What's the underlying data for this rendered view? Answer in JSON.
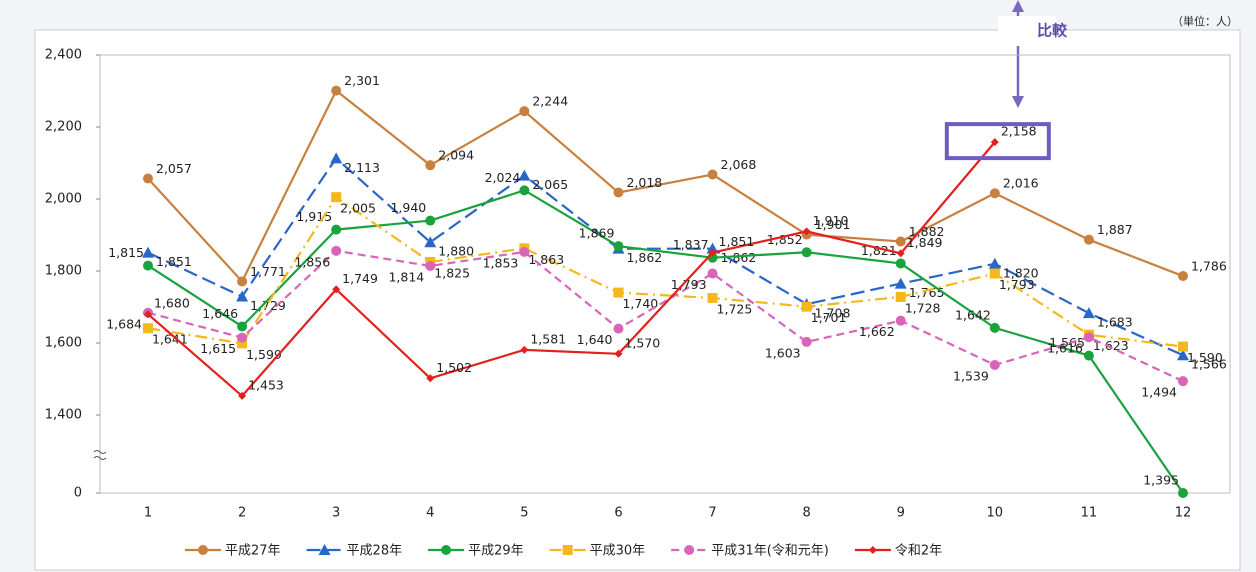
{
  "chart_data": {
    "type": "line",
    "unit_label": "（単位：人）",
    "annotation": "比較",
    "categories": [
      "1",
      "2",
      "3",
      "4",
      "5",
      "6",
      "7",
      "8",
      "9",
      "10",
      "11",
      "12"
    ],
    "ylim": [
      0,
      2400
    ],
    "yticks": [
      0,
      {
        "value": 1400,
        "label": "1,400"
      },
      {
        "value": 1600,
        "label": "1,600"
      },
      {
        "value": 1800,
        "label": "1,800"
      },
      {
        "value": 2000,
        "label": "2,000"
      },
      {
        "value": 2200,
        "label": "2,200"
      },
      {
        "value": 2400,
        "label": "2,400"
      }
    ],
    "axis_break": true,
    "legend": "bottom",
    "series": [
      {
        "name": "平成27年",
        "color": "#c8803e",
        "marker": "circle",
        "dash": "",
        "values": [
          2057,
          1771,
          2301,
          2094,
          2244,
          2018,
          2068,
          1901,
          1882,
          2016,
          1887,
          1786
        ],
        "value_labels": [
          "2,057",
          "1,771",
          "2,301",
          "2,094",
          "2,244",
          "2,018",
          "2,068",
          "1,901",
          "1,882",
          "2,016",
          "1,887",
          "1,786"
        ]
      },
      {
        "name": "平成28年",
        "color": "#2a66c9",
        "marker": "triangle",
        "dash": "14 6",
        "values": [
          1851,
          1729,
          2113,
          1880,
          2065,
          1862,
          1862,
          1708,
          1765,
          1820,
          1683,
          1566
        ],
        "value_labels": [
          "1,851",
          "1,729",
          "2,113",
          "1,880",
          "2,065",
          "1,862",
          "1,862",
          "1,708",
          "1,765",
          "1,820",
          "1,683",
          "1,566"
        ]
      },
      {
        "name": "平成29年",
        "color": "#1aa33c",
        "marker": "circle",
        "dash": "",
        "values": [
          1815,
          1646,
          1915,
          1940,
          2024,
          1869,
          1837,
          1852,
          1821,
          1642,
          1565,
          1395
        ],
        "value_labels": [
          "1,815",
          "1,646",
          "1,915",
          "1,940",
          "2,024",
          "1,869",
          "1,837",
          "1,852",
          "1,821",
          "1,642",
          "1,565",
          "1,395"
        ]
      },
      {
        "name": "平成30年",
        "color": "#f5b81c",
        "marker": "square",
        "dash": "12 5 2 5",
        "values": [
          1641,
          1599,
          2005,
          1825,
          1863,
          1740,
          1725,
          1701,
          1728,
          1793,
          1623,
          1590
        ],
        "value_labels": [
          "1,641",
          "1,599",
          "2,005",
          "1,825",
          "1,863",
          "1,740",
          "1,725",
          "1,701",
          "1,728",
          "1,793",
          "1,623",
          "1,590"
        ]
      },
      {
        "name": "平成31年(令和元年)",
        "color": "#d865b8",
        "marker": "circle",
        "dash": "8 5",
        "values": [
          1684,
          1615,
          1856,
          1814,
          1853,
          1640,
          1793,
          1603,
          1662,
          1539,
          1616,
          1494
        ],
        "value_labels": [
          "1,684",
          "1,615",
          "1,856",
          "1,814",
          "1,853",
          "1,640",
          "1,793",
          "1,603",
          "1,662",
          "1,539",
          "1,616",
          "1,494"
        ]
      },
      {
        "name": "令和2年",
        "color": "#e3211c",
        "marker": "diamond",
        "dash": "",
        "values": [
          1680,
          1453,
          1749,
          1502,
          1581,
          1570,
          1851,
          1910,
          1849,
          2158,
          null,
          null
        ],
        "value_labels": [
          "1,680",
          "1,453",
          "1,749",
          "1,502",
          "1,581",
          "1,570",
          "1,851",
          "1,910",
          "1,849",
          "2,158",
          null,
          null
        ]
      }
    ]
  }
}
